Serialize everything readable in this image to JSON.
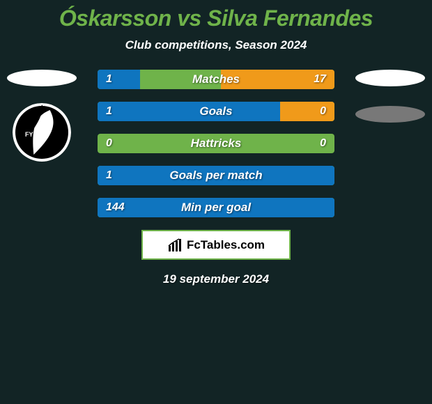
{
  "background_color": "#122425",
  "title": {
    "text": "Óskarsson vs Silva Fernandes",
    "color": "#6fb34a",
    "fontsize": 32
  },
  "subtitle": {
    "text": "Club competitions, Season 2024",
    "color": "#ffffff",
    "fontsize": 17
  },
  "left_player": {
    "ellipse_color": "#ffffff",
    "has_logo": true,
    "logo_text": "FYLKIR"
  },
  "right_player": {
    "ellipse_color": "#ffffff",
    "ellipse2_color": "#787878",
    "has_logo": false
  },
  "bars": {
    "base_color": "#6fb34a",
    "left_color": "#0f75bf",
    "right_color": "#f09a1a",
    "label_color": "#ffffff",
    "value_color": "#ffffff",
    "rows": [
      {
        "label": "Matches",
        "left_val": "1",
        "right_val": "17",
        "left_pct": 18,
        "right_pct": 48
      },
      {
        "label": "Goals",
        "left_val": "1",
        "right_val": "0",
        "left_pct": 77,
        "right_pct": 23
      },
      {
        "label": "Hattricks",
        "left_val": "0",
        "right_val": "0",
        "left_pct": 0,
        "right_pct": 0
      },
      {
        "label": "Goals per match",
        "left_val": "1",
        "right_val": "",
        "left_pct": 100,
        "right_pct": 0
      },
      {
        "label": "Min per goal",
        "left_val": "144",
        "right_val": "",
        "left_pct": 100,
        "right_pct": 0
      }
    ]
  },
  "brand": {
    "text": "FcTables.com",
    "bg": "#ffffff",
    "border": "#6fb34a",
    "color": "#000000"
  },
  "date": {
    "text": "19 september 2024",
    "color": "#ffffff"
  }
}
